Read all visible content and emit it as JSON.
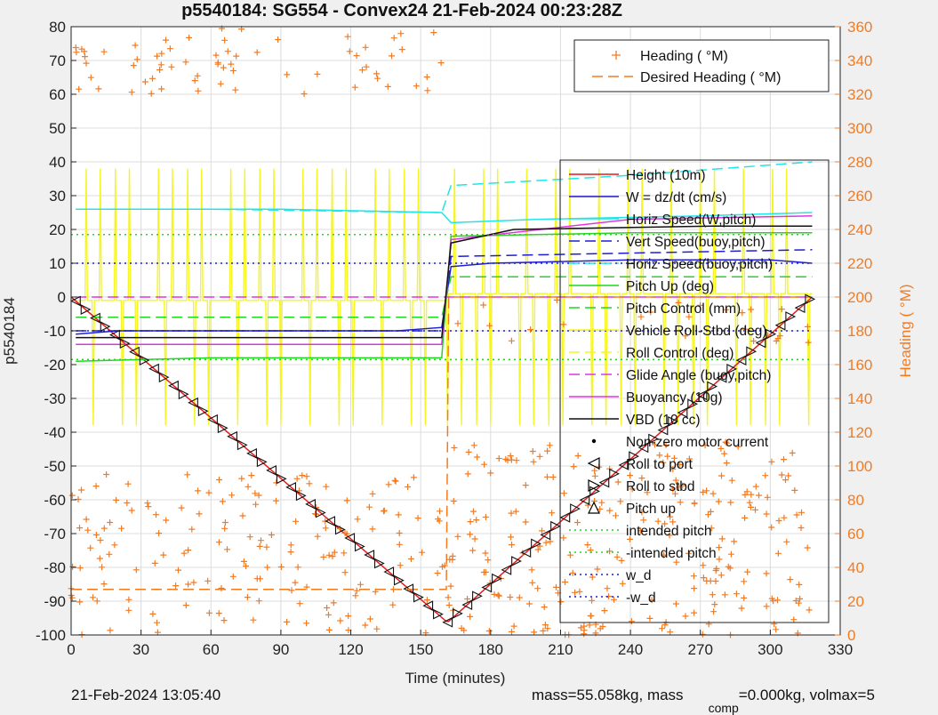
{
  "chart_data": {
    "type": "line",
    "title": "p5540184: SG554 - Convex24 21-Feb-2024 00:23:28Z",
    "xlabel": "Time (minutes)",
    "ylabel": "p5540184",
    "y2label": "Heading (  °M)",
    "xlim": [
      0,
      330
    ],
    "ylim": [
      -100,
      80
    ],
    "y2lim": [
      0,
      360
    ],
    "xticks": [
      0,
      30,
      60,
      90,
      120,
      150,
      180,
      210,
      240,
      270,
      300,
      330
    ],
    "yticks": [
      80,
      70,
      60,
      50,
      40,
      30,
      20,
      10,
      0,
      -10,
      -20,
      -30,
      -40,
      -50,
      -60,
      -70,
      -80,
      -90,
      -100
    ],
    "y2ticks": [
      360,
      340,
      320,
      300,
      280,
      260,
      240,
      220,
      200,
      180,
      160,
      140,
      120,
      100,
      80,
      60,
      40,
      20,
      0
    ],
    "grid": true,
    "legend_right_placement": "top-right",
    "legend_right": [
      {
        "label": "Heading (  °M)",
        "color": "#f47a20",
        "style": "plus"
      },
      {
        "label": "Desired Heading (    °M)",
        "color": "#f47a20",
        "style": "dash"
      }
    ],
    "legend_left": [
      {
        "label": "Height (10m)",
        "color": "#e41a1c",
        "style": "solid"
      },
      {
        "label": "W = dz/dt (cm/s)",
        "color": "#1f1fd0",
        "style": "solid"
      },
      {
        "label": "Horiz Speed(W,pitch)",
        "color": "#22e6e6",
        "style": "solid"
      },
      {
        "label": "Vert Speed(buoy,pitch)",
        "color": "#1f1fd0",
        "style": "dash"
      },
      {
        "label": "Horiz Speed(buoy,pitch)",
        "color": "#22e6e6",
        "style": "dash"
      },
      {
        "label": "Pitch Up (deg)",
        "color": "#22d622",
        "style": "solid"
      },
      {
        "label": "Pitch Control (mm)",
        "color": "#22d622",
        "style": "dash"
      },
      {
        "label": "Vehicle Roll-Stbd (deg)",
        "color": "#f5f526",
        "style": "solid"
      },
      {
        "label": "Roll Control (deg)",
        "color": "#f5f526",
        "style": "dash"
      },
      {
        "label": "Glide Angle (buoy,pitch)",
        "color": "#e233e2",
        "style": "dash"
      },
      {
        "label": "Buoyancy (10g)",
        "color": "#e233e2",
        "style": "solid"
      },
      {
        "label": "VBD (10 cc)",
        "color": "#111111",
        "style": "solid"
      },
      {
        "label": "Non-zero motor current",
        "color": "#000000",
        "style": "dot"
      },
      {
        "label": "Roll to port",
        "color": "#000000",
        "style": "tri-left"
      },
      {
        "label": "Roll to stbd",
        "color": "#000000",
        "style": "tri-right"
      },
      {
        "label": "Pitch up",
        "color": "#000000",
        "style": "tri-up"
      },
      {
        "label": "intended pitch",
        "color": "#22d622",
        "style": "dotted"
      },
      {
        "label": "-intended pitch",
        "color": "#22d622",
        "style": "dotted"
      },
      {
        "label": "w_d",
        "color": "#1f1fd0",
        "style": "dotted"
      },
      {
        "label": "-w_d",
        "color": "#1f1fd0",
        "style": "dotted"
      }
    ],
    "series": [
      {
        "name": "Height (10m)",
        "x": [
          0,
          161,
          162,
          318
        ],
        "y": [
          0,
          -96,
          -96,
          0
        ]
      },
      {
        "name": "W = dz/dt (cm/s)",
        "x": [
          2,
          20,
          60,
          100,
          140,
          159,
          163,
          180,
          240,
          300,
          318
        ],
        "y": [
          -11,
          -10,
          -10,
          -10,
          -10,
          -9,
          9,
          10,
          11,
          11,
          10
        ]
      },
      {
        "name": "Horiz Speed(W,pitch)",
        "x": [
          2,
          30,
          90,
          159,
          163,
          200,
          270,
          318
        ],
        "y": [
          26,
          26,
          26,
          25,
          22,
          23,
          24,
          25
        ]
      },
      {
        "name": "Vert Speed(buoy,pitch)",
        "x": [
          2,
          60,
          159,
          163,
          240,
          318
        ],
        "y": [
          -10,
          -10,
          -10,
          12,
          13,
          14
        ]
      },
      {
        "name": "Horiz Speed(buoy,pitch)",
        "x": [
          2,
          60,
          159,
          163,
          240,
          318
        ],
        "y": [
          26,
          26,
          25,
          33,
          36,
          40
        ]
      },
      {
        "name": "Pitch Up (deg)",
        "x": [
          2,
          60,
          159,
          163,
          240,
          318
        ],
        "y": [
          -19,
          -18,
          -18,
          18,
          19,
          19
        ]
      },
      {
        "name": "Pitch Control (mm)",
        "x": [
          2,
          159,
          163,
          318
        ],
        "y": [
          -6,
          -6,
          6,
          6
        ]
      },
      {
        "name": "Glide Angle (buoy,pitch)",
        "x": [
          2,
          159,
          163,
          318
        ],
        "y": [
          0,
          0,
          0,
          0
        ]
      },
      {
        "name": "Buoyancy (10g)",
        "x": [
          2,
          159,
          163,
          240,
          318
        ],
        "y": [
          -14,
          -14,
          17,
          23,
          24
        ]
      },
      {
        "name": "VBD (10 cc)",
        "x": [
          2,
          159,
          163,
          190,
          275,
          318
        ],
        "y": [
          -12,
          -12,
          16,
          20,
          21,
          21
        ]
      },
      {
        "name": "intended pitch",
        "x": [
          0,
          318
        ],
        "y": [
          18.5,
          18.5
        ]
      },
      {
        "name": "-intended pitch",
        "x": [
          0,
          318
        ],
        "y": [
          -18.5,
          -18.5
        ]
      },
      {
        "name": "w_d",
        "x": [
          0,
          318
        ],
        "y": [
          10,
          10
        ]
      },
      {
        "name": "-w_d",
        "x": [
          0,
          318
        ],
        "y": [
          -10,
          -10
        ]
      },
      {
        "name": "Desired Heading (    °M)",
        "axis": "right",
        "x": [
          0,
          161,
          162,
          318
        ],
        "y": [
          27,
          27,
          200,
          200
        ]
      }
    ]
  },
  "footer": {
    "timestamp": "21-Feb-2024 13:05:40",
    "mass_text": "mass=55.058kg, mass",
    "comp_sub": "comp",
    "comp_text": "=0.000kg, volmax=5"
  },
  "colors": {
    "axes_bg": "#ffffff",
    "figure_bg": "#f0f0f0",
    "right_axis": "#f47a20",
    "grid": "#dcdcdc"
  }
}
